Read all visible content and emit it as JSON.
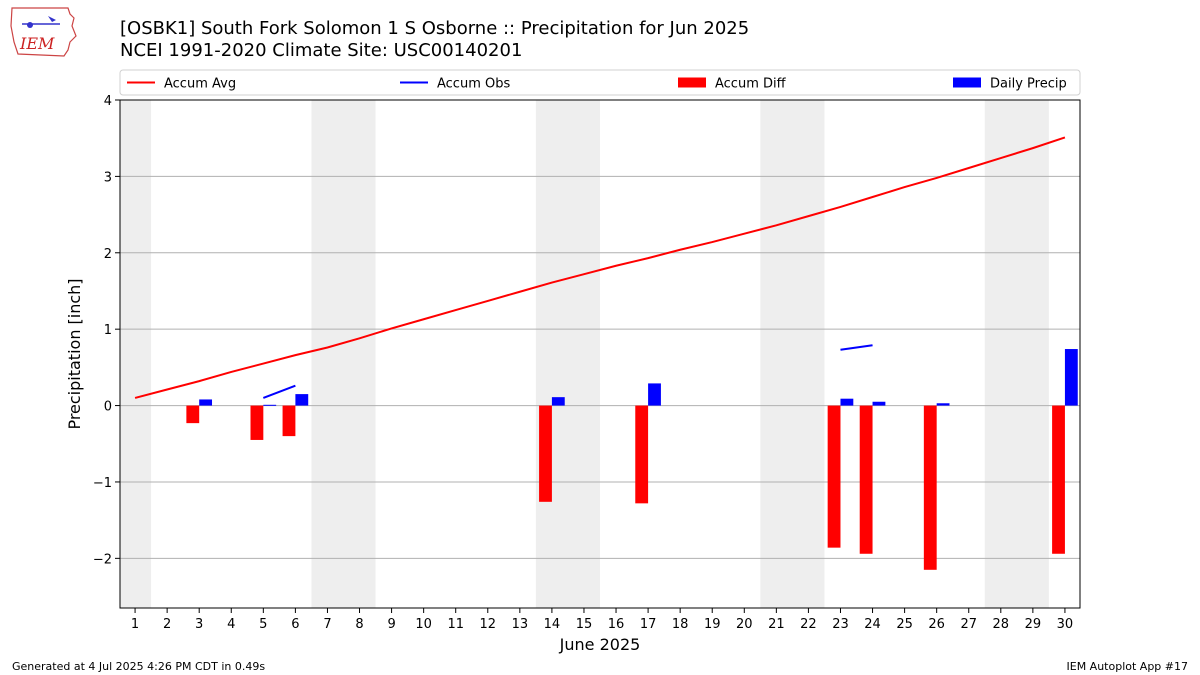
{
  "header": {
    "title": "[OSBK1] South Fork Solomon 1 S Osborne :: Precipitation for Jun 2025",
    "subtitle": "NCEI 1991-2020 Climate Site: USC00140201",
    "logo_text": "IEM"
  },
  "footer": {
    "left": "Generated at 4 Jul 2025 4:26 PM CDT in 0.49s",
    "right": "IEM Autoplot App #17"
  },
  "colors": {
    "avg": "#ff0000",
    "obs": "#0000ff",
    "diff": "#ff0000",
    "daily": "#0000ff",
    "weekend": "#eeeeee",
    "grid": "#b0b0b0"
  },
  "chart_data": {
    "type": "bar",
    "title": "[OSBK1] South Fork Solomon 1 S Osborne :: Precipitation for Jun 2025",
    "xlabel": "June 2025",
    "ylabel": "Precipitation [inch]",
    "ylim": [
      -2.65,
      4.0
    ],
    "yticks": [
      "−2",
      "−1",
      "0",
      "1",
      "2",
      "3",
      "4"
    ],
    "ytick_values": [
      -2,
      -1,
      0,
      1,
      2,
      3,
      4
    ],
    "x": [
      1,
      2,
      3,
      4,
      5,
      6,
      7,
      8,
      9,
      10,
      11,
      12,
      13,
      14,
      15,
      16,
      17,
      18,
      19,
      20,
      21,
      22,
      23,
      24,
      25,
      26,
      27,
      28,
      29,
      30
    ],
    "weekend_shading": [
      [
        1,
        1
      ],
      [
        7,
        8
      ],
      [
        14,
        15
      ],
      [
        21,
        22
      ],
      [
        28,
        29
      ]
    ],
    "grid": true,
    "legend": {
      "placement": "top",
      "entries": [
        "Accum Avg",
        "Accum Obs",
        "Accum Diff",
        "Daily Precip"
      ]
    },
    "series": [
      {
        "name": "Accum Avg",
        "kind": "line",
        "color": "#ff0000",
        "values": [
          0.1,
          0.21,
          0.32,
          0.44,
          0.55,
          0.66,
          0.76,
          0.88,
          1.01,
          1.13,
          1.25,
          1.37,
          1.49,
          1.61,
          1.72,
          1.83,
          1.93,
          2.04,
          2.14,
          2.25,
          2.36,
          2.48,
          2.6,
          2.73,
          2.86,
          2.98,
          3.11,
          3.24,
          3.37,
          3.51
        ]
      },
      {
        "name": "Accum Obs",
        "kind": "line",
        "color": "#0000ff",
        "segments": [
          {
            "x": [
              5,
              6
            ],
            "y": [
              0.1,
              0.26
            ]
          },
          {
            "x": [
              23,
              24
            ],
            "y": [
              0.73,
              0.79
            ]
          }
        ]
      },
      {
        "name": "Accum Diff",
        "kind": "bar",
        "color": "#ff0000",
        "points": [
          {
            "day": 3,
            "value": -0.23
          },
          {
            "day": 5,
            "value": -0.45
          },
          {
            "day": 6,
            "value": -0.4
          },
          {
            "day": 14,
            "value": -1.26
          },
          {
            "day": 17,
            "value": -1.28
          },
          {
            "day": 23,
            "value": -1.86
          },
          {
            "day": 24,
            "value": -1.94
          },
          {
            "day": 26,
            "value": -2.15
          },
          {
            "day": 30,
            "value": -1.94
          }
        ]
      },
      {
        "name": "Daily Precip",
        "kind": "bar",
        "color": "#0000ff",
        "points": [
          {
            "day": 3,
            "value": 0.08
          },
          {
            "day": 5,
            "value": 0.01
          },
          {
            "day": 6,
            "value": 0.15
          },
          {
            "day": 14,
            "value": 0.11
          },
          {
            "day": 17,
            "value": 0.29
          },
          {
            "day": 23,
            "value": 0.09
          },
          {
            "day": 24,
            "value": 0.05
          },
          {
            "day": 26,
            "value": 0.03
          },
          {
            "day": 30,
            "value": 0.74
          }
        ]
      }
    ]
  }
}
